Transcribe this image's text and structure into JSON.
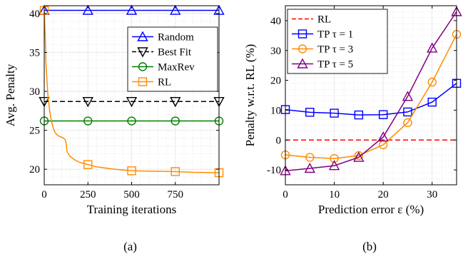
{
  "chart_data": [
    {
      "type": "line",
      "caption": "(a)",
      "xlabel": "Training iterations",
      "ylabel": "Avg. Penalty",
      "xlim": [
        0,
        1000
      ],
      "ylim": [
        18,
        41
      ],
      "xticks": [
        0,
        250,
        500,
        750
      ],
      "yticks": [
        20,
        25,
        30,
        35,
        40
      ],
      "grid": true,
      "legend_position": "right, upper-middle",
      "series": [
        {
          "name": "Random",
          "color": "#0000ff",
          "marker": "triangle-up",
          "x": [
            0,
            1000
          ],
          "y": [
            40.4,
            40.4
          ],
          "marker_x": [
            0,
            250,
            500,
            750,
            1000
          ]
        },
        {
          "name": "Best Fit",
          "color": "#000000",
          "dash": true,
          "marker": "triangle-down",
          "x": [
            0,
            1000
          ],
          "y": [
            28.7,
            28.7
          ],
          "marker_x": [
            0,
            250,
            500,
            750,
            1000
          ]
        },
        {
          "name": "MaxRev",
          "color": "#008000",
          "marker": "circle",
          "x": [
            0,
            1000
          ],
          "y": [
            26.2,
            26.2
          ],
          "marker_x": [
            0,
            250,
            500,
            750,
            1000
          ]
        },
        {
          "name": "RL",
          "color": "#ff8c00",
          "marker": "square",
          "x": [
            0,
            5,
            10,
            20,
            30,
            40,
            50,
            60,
            70,
            80,
            90,
            100,
            110,
            120,
            125,
            130,
            140,
            150,
            175,
            200,
            250,
            300,
            400,
            500,
            600,
            750,
            850,
            1000
          ],
          "y": [
            40.4,
            37.5,
            33.5,
            29.8,
            27.7,
            26.3,
            25.4,
            24.8,
            24.5,
            24.3,
            24.2,
            24.1,
            24.0,
            23.8,
            23.3,
            22.3,
            21.9,
            21.6,
            21.2,
            20.9,
            20.6,
            20.3,
            20.0,
            19.8,
            19.75,
            19.7,
            19.6,
            19.55
          ],
          "marker_x": [
            0,
            250,
            500,
            750,
            1000
          ],
          "marker_y": [
            40.4,
            20.6,
            19.8,
            19.7,
            19.55
          ]
        }
      ]
    },
    {
      "type": "line",
      "caption": "(b)",
      "xlabel": "Prediction error ε (%)",
      "ylabel": "Penalty w.r.t. RL (%)",
      "xlim": [
        0,
        35
      ],
      "ylim": [
        -15,
        45
      ],
      "xticks": [
        0,
        10,
        20,
        30
      ],
      "yticks": [
        -10,
        0,
        10,
        20,
        30,
        40
      ],
      "grid": true,
      "legend_position": "top-left",
      "series": [
        {
          "name": "RL",
          "color": "#ff0000",
          "dash": true,
          "marker": "none",
          "x": [
            0,
            35
          ],
          "y": [
            0,
            0
          ]
        },
        {
          "name": "TP τ = 1",
          "color": "#0000ff",
          "marker": "square",
          "x": [
            0,
            5,
            10,
            15,
            20,
            25,
            30,
            35
          ],
          "y": [
            10.2,
            9.3,
            9.0,
            8.4,
            8.5,
            9.4,
            12.7,
            19.0
          ]
        },
        {
          "name": "TP τ = 3",
          "color": "#ff8c00",
          "marker": "circle",
          "x": [
            0,
            5,
            10,
            15,
            20,
            25,
            30,
            35
          ],
          "y": [
            -5.0,
            -5.8,
            -6.2,
            -5.2,
            -1.6,
            5.8,
            19.4,
            35.4
          ]
        },
        {
          "name": "TP τ = 5",
          "color": "#800080",
          "marker": "triangle-up",
          "x": [
            0,
            5,
            10,
            15,
            20,
            25,
            30,
            35
          ],
          "y": [
            -10.3,
            -9.5,
            -8.6,
            -5.8,
            1.0,
            14.6,
            30.8,
            43.0
          ]
        }
      ]
    }
  ]
}
